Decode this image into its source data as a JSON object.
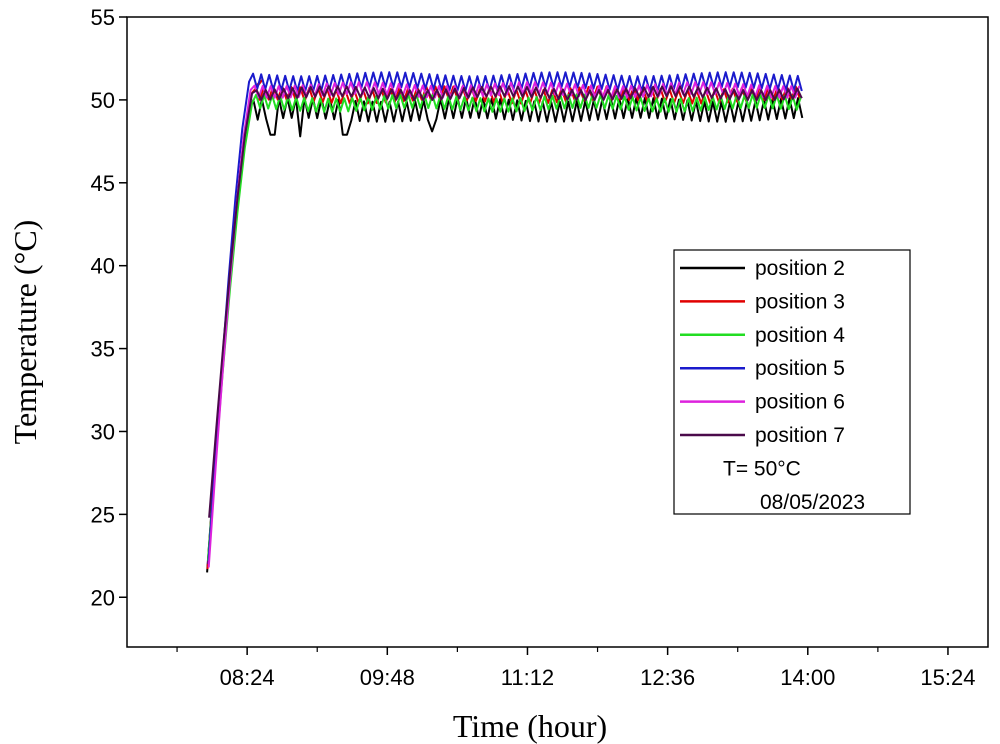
{
  "chart_data": {
    "type": "line",
    "xlabel": "Time (hour)",
    "ylabel": "Temperature (°C)",
    "x_unit": "hours after midnight",
    "xlim": [
      7.2,
      15.8
    ],
    "ylim": [
      17,
      55
    ],
    "x_ticks": [
      {
        "value": 8.4,
        "label": "08:24"
      },
      {
        "value": 9.8,
        "label": "09:48"
      },
      {
        "value": 11.2,
        "label": "11:12"
      },
      {
        "value": 12.6,
        "label": "12:36"
      },
      {
        "value": 14.0,
        "label": "14:00"
      },
      {
        "value": 15.4,
        "label": "15:24"
      }
    ],
    "x_minor_ticks": [
      7.7,
      9.1,
      10.5,
      11.9,
      13.3,
      14.7
    ],
    "y_ticks": [
      {
        "value": 20,
        "label": "20"
      },
      {
        "value": 25,
        "label": "25"
      },
      {
        "value": 30,
        "label": "30"
      },
      {
        "value": 35,
        "label": "35"
      },
      {
        "value": 40,
        "label": "40"
      },
      {
        "value": 45,
        "label": "45"
      },
      {
        "value": 50,
        "label": "50"
      },
      {
        "value": 55,
        "label": "55"
      }
    ],
    "legend": {
      "placement": "center-right",
      "annotation_1": "T= 50°C",
      "annotation_2": "08/05/2023"
    },
    "series": [
      {
        "name": "position 2",
        "color": "#000000",
        "start_value": 21.5,
        "mean": 49.4,
        "amplitude": 0.6,
        "period_h": 0.085,
        "end_h": 13.95,
        "dips": [
          [
            8.65,
            47.9
          ],
          [
            8.93,
            47.8
          ],
          [
            9.38,
            47.9
          ],
          [
            10.25,
            48.1
          ]
        ]
      },
      {
        "name": "position 3",
        "color": "#e00000",
        "start_value": 21.7,
        "mean": 50.3,
        "amplitude": 0.4,
        "period_h": 0.09,
        "end_h": 13.95,
        "peak": [
          8.55,
          51.2
        ]
      },
      {
        "name": "position 4",
        "color": "#22dd22",
        "start_value": 22.2,
        "mean": 49.8,
        "amplitude": 0.4,
        "period_h": 0.08,
        "end_h": 13.95
      },
      {
        "name": "position 5",
        "color": "#1a1acc",
        "start_value": 22.0,
        "mean": 51.1,
        "amplitude": 0.45,
        "period_h": 0.08,
        "end_h": 13.95
      },
      {
        "name": "position 6",
        "color": "#dd22dd",
        "start_value": 21.8,
        "mean": 50.6,
        "amplitude": 0.35,
        "period_h": 0.08,
        "end_h": 13.95
      },
      {
        "name": "position 7",
        "color": "#4a0a4a",
        "start_value": 24.8,
        "mean": 50.4,
        "amplitude": 0.3,
        "period_h": 0.09,
        "end_h": 13.95
      }
    ],
    "rise": {
      "start_h": 8.0,
      "end_h": 8.42
    },
    "grid": false
  }
}
